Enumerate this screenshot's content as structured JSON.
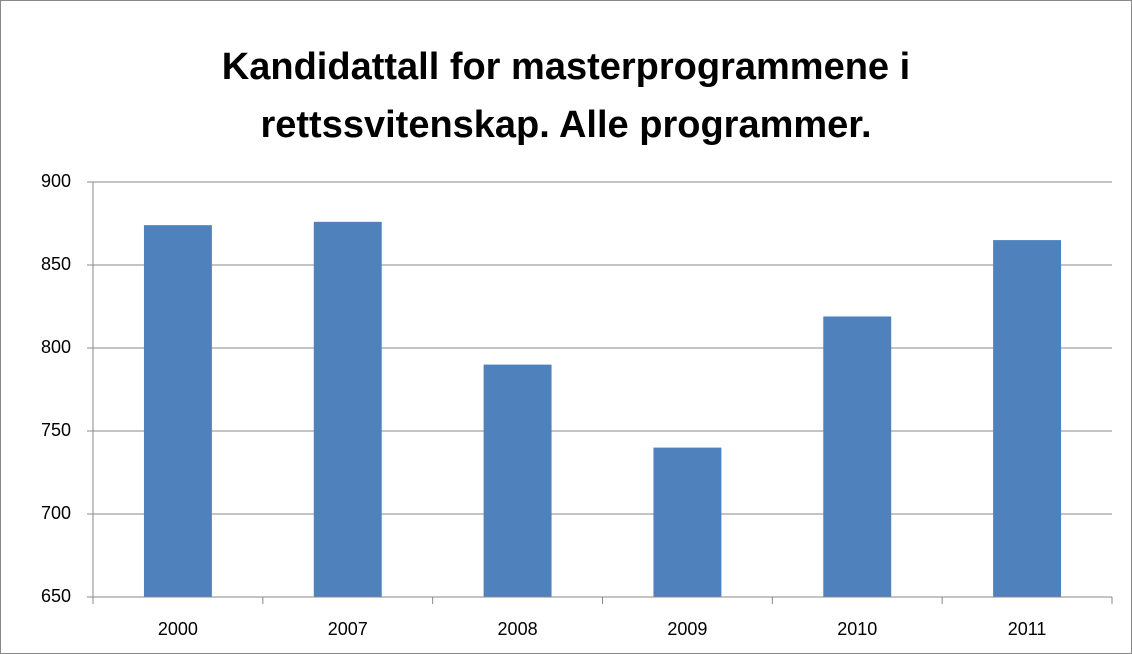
{
  "chart_data": {
    "type": "bar",
    "title": "Kandidattall for masterprogrammene i rettssvitenskap. Alle programmer.",
    "categories": [
      "2000",
      "2007",
      "2008",
      "2009",
      "2010",
      "2011"
    ],
    "values": [
      874,
      876,
      790,
      740,
      819,
      865
    ],
    "color": "#4f81bd",
    "ylim": [
      650,
      900
    ],
    "yticks": [
      650,
      700,
      750,
      800,
      850,
      900
    ],
    "grid": true
  }
}
